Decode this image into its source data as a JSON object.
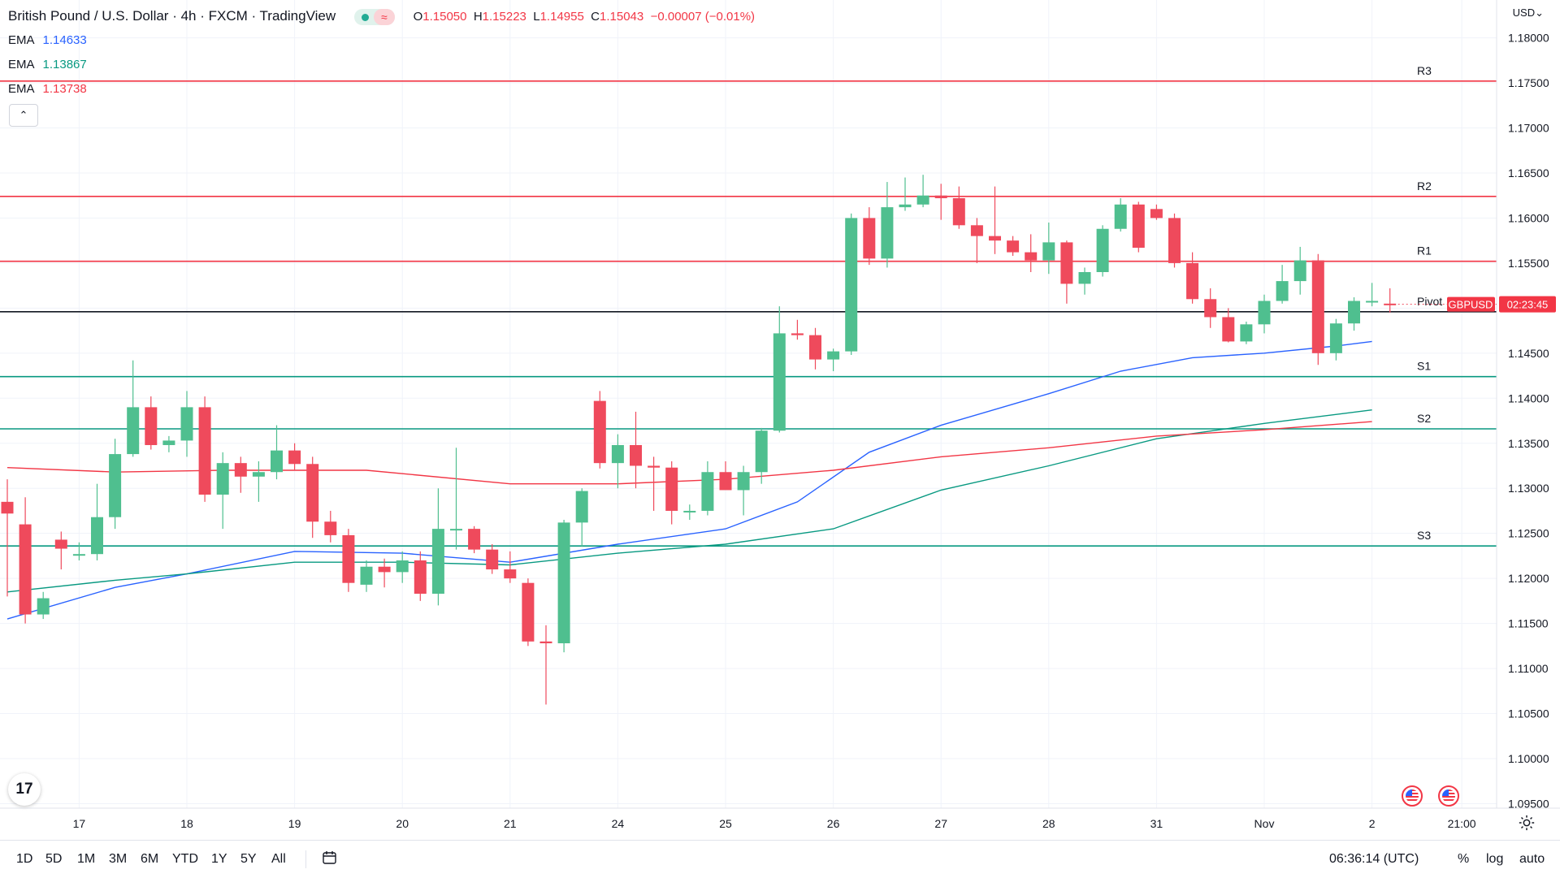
{
  "header": {
    "title": "British Pound / U.S. Dollar · 4h · FXCM · TradingView",
    "open_label": "O",
    "open": "1.15050",
    "high_label": "H",
    "high": "1.15223",
    "low_label": "L",
    "low": "1.14955",
    "close_label": "C",
    "close": "1.15043",
    "change": "−0.00007 (−0.01%)",
    "wave_icon": "≈"
  },
  "indicators": [
    {
      "name": "EMA",
      "value": "1.14633",
      "color": "#2962ff"
    },
    {
      "name": "EMA",
      "value": "1.13867",
      "color": "#089981"
    },
    {
      "name": "EMA",
      "value": "1.13738",
      "color": "#f23645"
    }
  ],
  "collapse_icon": "⌃",
  "currency_button": "USD⌄",
  "tv_logo": "17",
  "bottom_bar": {
    "timeframes": [
      "1D",
      "5D",
      "1M",
      "3M",
      "6M",
      "YTD",
      "1Y",
      "5Y",
      "All"
    ],
    "clock": "06:36:14 (UTC)",
    "percent": "%",
    "log": "log",
    "auto": "auto"
  },
  "chart_data": {
    "type": "candlestick",
    "symbol": "GBPUSD",
    "timeframe": "4h",
    "price_tag": "GBPUSD",
    "countdown": "02:23:45",
    "current_price": 1.15043,
    "ylim": [
      1.0945,
      1.1842
    ],
    "y_ticks": [
      "1.18000",
      "1.17500",
      "1.17000",
      "1.16500",
      "1.16000",
      "1.15500",
      "1.15000",
      "1.14500",
      "1.14000",
      "1.13500",
      "1.13000",
      "1.12500",
      "1.12000",
      "1.11500",
      "1.11000",
      "1.10500",
      "1.10000",
      "1.09500"
    ],
    "y_tick_values": [
      1.18,
      1.175,
      1.17,
      1.165,
      1.16,
      1.155,
      1.15,
      1.145,
      1.14,
      1.135,
      1.13,
      1.125,
      1.12,
      1.115,
      1.11,
      1.105,
      1.1,
      1.095
    ],
    "x_ticks": [
      {
        "label": "17",
        "index": 4
      },
      {
        "label": "18",
        "index": 10
      },
      {
        "label": "19",
        "index": 16
      },
      {
        "label": "20",
        "index": 22
      },
      {
        "label": "21",
        "index": 28
      },
      {
        "label": "24",
        "index": 34
      },
      {
        "label": "25",
        "index": 40
      },
      {
        "label": "26",
        "index": 46
      },
      {
        "label": "27",
        "index": 52
      },
      {
        "label": "28",
        "index": 58
      },
      {
        "label": "31",
        "index": 64
      },
      {
        "label": "Nov",
        "index": 70
      },
      {
        "label": "2",
        "index": 76
      },
      {
        "label": "21:00",
        "index": 81
      }
    ],
    "levels": [
      {
        "name": "R3",
        "value": 1.1752,
        "color": "#f23645"
      },
      {
        "name": "R2",
        "value": 1.1624,
        "color": "#f23645"
      },
      {
        "name": "R1",
        "value": 1.1552,
        "color": "#f23645"
      },
      {
        "name": "Pivot",
        "value": 1.1496,
        "color": "#131722"
      },
      {
        "name": "S1",
        "value": 1.1424,
        "color": "#089981"
      },
      {
        "name": "S2",
        "value": 1.1366,
        "color": "#089981"
      },
      {
        "name": "S3",
        "value": 1.1236,
        "color": "#089981"
      }
    ],
    "candles": [
      {
        "o": 1.1285,
        "h": 1.131,
        "l": 1.118,
        "c": 1.1272
      },
      {
        "o": 1.126,
        "h": 1.129,
        "l": 1.115,
        "c": 1.116
      },
      {
        "o": 1.116,
        "h": 1.1185,
        "l": 1.1155,
        "c": 1.1178
      },
      {
        "o": 1.1243,
        "h": 1.1252,
        "l": 1.121,
        "c": 1.1233
      },
      {
        "o": 1.1227,
        "h": 1.124,
        "l": 1.122,
        "c": 1.1227
      },
      {
        "o": 1.1227,
        "h": 1.1305,
        "l": 1.122,
        "c": 1.1268
      },
      {
        "o": 1.1268,
        "h": 1.1355,
        "l": 1.1255,
        "c": 1.1338
      },
      {
        "o": 1.1338,
        "h": 1.1442,
        "l": 1.1335,
        "c": 1.139
      },
      {
        "o": 1.139,
        "h": 1.1402,
        "l": 1.1343,
        "c": 1.1348
      },
      {
        "o": 1.1348,
        "h": 1.1358,
        "l": 1.134,
        "c": 1.1353
      },
      {
        "o": 1.1353,
        "h": 1.1408,
        "l": 1.1335,
        "c": 1.139
      },
      {
        "o": 1.139,
        "h": 1.1402,
        "l": 1.1285,
        "c": 1.1293
      },
      {
        "o": 1.1293,
        "h": 1.134,
        "l": 1.1255,
        "c": 1.1328
      },
      {
        "o": 1.1328,
        "h": 1.1335,
        "l": 1.1295,
        "c": 1.1313
      },
      {
        "o": 1.1313,
        "h": 1.133,
        "l": 1.1285,
        "c": 1.1318
      },
      {
        "o": 1.1318,
        "h": 1.137,
        "l": 1.131,
        "c": 1.1342
      },
      {
        "o": 1.1342,
        "h": 1.135,
        "l": 1.132,
        "c": 1.1327
      },
      {
        "o": 1.1327,
        "h": 1.1335,
        "l": 1.1245,
        "c": 1.1263
      },
      {
        "o": 1.1263,
        "h": 1.1275,
        "l": 1.124,
        "c": 1.1248
      },
      {
        "o": 1.1248,
        "h": 1.1255,
        "l": 1.1185,
        "c": 1.1195
      },
      {
        "o": 1.1193,
        "h": 1.122,
        "l": 1.1185,
        "c": 1.1213
      },
      {
        "o": 1.1213,
        "h": 1.1222,
        "l": 1.119,
        "c": 1.1207
      },
      {
        "o": 1.1207,
        "h": 1.123,
        "l": 1.1195,
        "c": 1.122
      },
      {
        "o": 1.122,
        "h": 1.123,
        "l": 1.1175,
        "c": 1.1183
      },
      {
        "o": 1.1183,
        "h": 1.13,
        "l": 1.117,
        "c": 1.1255
      },
      {
        "o": 1.1255,
        "h": 1.1345,
        "l": 1.1232,
        "c": 1.1255
      },
      {
        "o": 1.1255,
        "h": 1.1258,
        "l": 1.1228,
        "c": 1.1232
      },
      {
        "o": 1.1232,
        "h": 1.1238,
        "l": 1.1205,
        "c": 1.121
      },
      {
        "o": 1.121,
        "h": 1.123,
        "l": 1.1195,
        "c": 1.12
      },
      {
        "o": 1.1195,
        "h": 1.12,
        "l": 1.1125,
        "c": 1.113
      },
      {
        "o": 1.113,
        "h": 1.1148,
        "l": 1.106,
        "c": 1.1128
      },
      {
        "o": 1.1128,
        "h": 1.1265,
        "l": 1.1118,
        "c": 1.1262
      },
      {
        "o": 1.1262,
        "h": 1.13,
        "l": 1.1235,
        "c": 1.1297
      },
      {
        "o": 1.1397,
        "h": 1.1408,
        "l": 1.1322,
        "c": 1.1328
      },
      {
        "o": 1.1328,
        "h": 1.136,
        "l": 1.13,
        "c": 1.1348
      },
      {
        "o": 1.1348,
        "h": 1.1385,
        "l": 1.13,
        "c": 1.1325
      },
      {
        "o": 1.1325,
        "h": 1.1335,
        "l": 1.1275,
        "c": 1.1323
      },
      {
        "o": 1.1323,
        "h": 1.133,
        "l": 1.126,
        "c": 1.1275
      },
      {
        "o": 1.1275,
        "h": 1.1282,
        "l": 1.1265,
        "c": 1.1275
      },
      {
        "o": 1.1275,
        "h": 1.133,
        "l": 1.127,
        "c": 1.1318
      },
      {
        "o": 1.1318,
        "h": 1.133,
        "l": 1.13,
        "c": 1.1298
      },
      {
        "o": 1.1298,
        "h": 1.1325,
        "l": 1.127,
        "c": 1.1318
      },
      {
        "o": 1.1318,
        "h": 1.1367,
        "l": 1.1305,
        "c": 1.1364
      },
      {
        "o": 1.1364,
        "h": 1.1502,
        "l": 1.1362,
        "c": 1.1472
      },
      {
        "o": 1.1472,
        "h": 1.1487,
        "l": 1.1465,
        "c": 1.147
      },
      {
        "o": 1.147,
        "h": 1.1478,
        "l": 1.1432,
        "c": 1.1443
      },
      {
        "o": 1.1443,
        "h": 1.1455,
        "l": 1.143,
        "c": 1.1452
      },
      {
        "o": 1.1452,
        "h": 1.1605,
        "l": 1.1448,
        "c": 1.16
      },
      {
        "o": 1.16,
        "h": 1.1612,
        "l": 1.1548,
        "c": 1.1555
      },
      {
        "o": 1.1555,
        "h": 1.164,
        "l": 1.1545,
        "c": 1.1612
      },
      {
        "o": 1.1612,
        "h": 1.1645,
        "l": 1.1608,
        "c": 1.1615
      },
      {
        "o": 1.1615,
        "h": 1.1648,
        "l": 1.1612,
        "c": 1.1625
      },
      {
        "o": 1.1625,
        "h": 1.1638,
        "l": 1.1598,
        "c": 1.1622
      },
      {
        "o": 1.1622,
        "h": 1.1635,
        "l": 1.1588,
        "c": 1.1592
      },
      {
        "o": 1.1592,
        "h": 1.16,
        "l": 1.155,
        "c": 1.158
      },
      {
        "o": 1.158,
        "h": 1.1635,
        "l": 1.156,
        "c": 1.1575
      },
      {
        "o": 1.1575,
        "h": 1.158,
        "l": 1.1558,
        "c": 1.1562
      },
      {
        "o": 1.1562,
        "h": 1.1582,
        "l": 1.154,
        "c": 1.1553
      },
      {
        "o": 1.1553,
        "h": 1.1595,
        "l": 1.1538,
        "c": 1.1573
      },
      {
        "o": 1.1573,
        "h": 1.1575,
        "l": 1.1505,
        "c": 1.1527
      },
      {
        "o": 1.1527,
        "h": 1.1545,
        "l": 1.1515,
        "c": 1.154
      },
      {
        "o": 1.154,
        "h": 1.1592,
        "l": 1.1535,
        "c": 1.1588
      },
      {
        "o": 1.1588,
        "h": 1.1622,
        "l": 1.1585,
        "c": 1.1615
      },
      {
        "o": 1.1615,
        "h": 1.1618,
        "l": 1.1562,
        "c": 1.1567
      },
      {
        "o": 1.161,
        "h": 1.1615,
        "l": 1.1598,
        "c": 1.16
      },
      {
        "o": 1.16,
        "h": 1.1605,
        "l": 1.1545,
        "c": 1.155
      },
      {
        "o": 1.155,
        "h": 1.1562,
        "l": 1.1505,
        "c": 1.151
      },
      {
        "o": 1.151,
        "h": 1.1522,
        "l": 1.1478,
        "c": 1.149
      },
      {
        "o": 1.149,
        "h": 1.15,
        "l": 1.1462,
        "c": 1.1463
      },
      {
        "o": 1.1463,
        "h": 1.1485,
        "l": 1.146,
        "c": 1.1482
      },
      {
        "o": 1.1482,
        "h": 1.1515,
        "l": 1.1472,
        "c": 1.1508
      },
      {
        "o": 1.1508,
        "h": 1.1548,
        "l": 1.1505,
        "c": 1.153
      },
      {
        "o": 1.153,
        "h": 1.1568,
        "l": 1.1515,
        "c": 1.1553
      },
      {
        "o": 1.1553,
        "h": 1.156,
        "l": 1.1437,
        "c": 1.145
      },
      {
        "o": 1.145,
        "h": 1.1488,
        "l": 1.1442,
        "c": 1.1483
      },
      {
        "o": 1.1483,
        "h": 1.1512,
        "l": 1.1475,
        "c": 1.1508
      },
      {
        "o": 1.1508,
        "h": 1.1528,
        "l": 1.1502,
        "c": 1.1508
      },
      {
        "o": 1.1505,
        "h": 1.1522,
        "l": 1.1495,
        "c": 1.1504
      }
    ],
    "ema_series": [
      {
        "name": "EMA",
        "color": "#2962ff",
        "points": [
          [
            0,
            1.1155
          ],
          [
            6,
            1.119
          ],
          [
            10,
            1.1205
          ],
          [
            16,
            1.123
          ],
          [
            22,
            1.1228
          ],
          [
            28,
            1.1218
          ],
          [
            34,
            1.1238
          ],
          [
            40,
            1.1255
          ],
          [
            44,
            1.1285
          ],
          [
            48,
            1.134
          ],
          [
            52,
            1.137
          ],
          [
            58,
            1.1405
          ],
          [
            62,
            1.143
          ],
          [
            66,
            1.1445
          ],
          [
            70,
            1.145
          ],
          [
            74,
            1.1458
          ],
          [
            76,
            1.1463
          ]
        ]
      },
      {
        "name": "EMA",
        "color": "#089981",
        "points": [
          [
            0,
            1.1185
          ],
          [
            6,
            1.1198
          ],
          [
            10,
            1.1205
          ],
          [
            16,
            1.1218
          ],
          [
            22,
            1.1218
          ],
          [
            28,
            1.1215
          ],
          [
            34,
            1.1228
          ],
          [
            40,
            1.1238
          ],
          [
            46,
            1.1255
          ],
          [
            52,
            1.1298
          ],
          [
            58,
            1.1325
          ],
          [
            64,
            1.1355
          ],
          [
            70,
            1.1372
          ],
          [
            76,
            1.1387
          ]
        ]
      },
      {
        "name": "EMA",
        "color": "#f23645",
        "points": [
          [
            0,
            1.1323
          ],
          [
            6,
            1.1318
          ],
          [
            12,
            1.132
          ],
          [
            20,
            1.132
          ],
          [
            28,
            1.1305
          ],
          [
            34,
            1.1305
          ],
          [
            40,
            1.131
          ],
          [
            46,
            1.132
          ],
          [
            52,
            1.1335
          ],
          [
            58,
            1.1345
          ],
          [
            64,
            1.1358
          ],
          [
            70,
            1.1365
          ],
          [
            76,
            1.1374
          ]
        ]
      }
    ]
  }
}
